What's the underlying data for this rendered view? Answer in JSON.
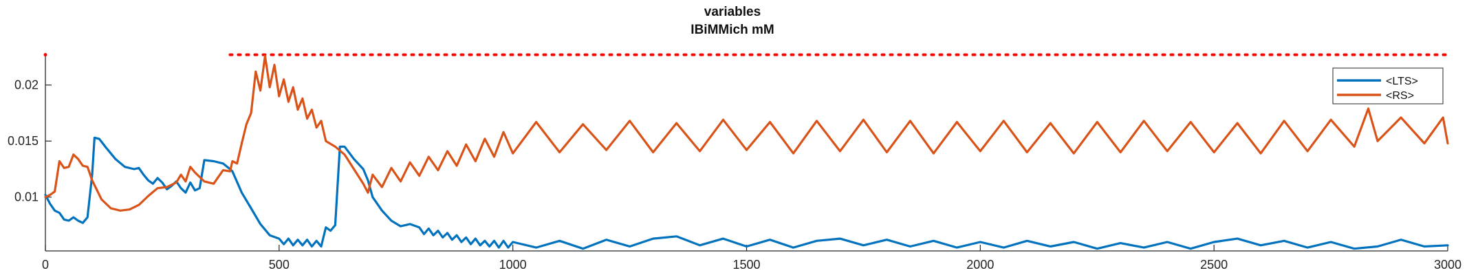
{
  "chart_data": {
    "type": "line",
    "title": "variables",
    "subtitle": "IBiMMich mM",
    "xlabel": "",
    "ylabel": "",
    "xlim": [
      0,
      3000
    ],
    "ylim": [
      0.0052,
      0.0228
    ],
    "x_ticks": [
      0,
      500,
      1000,
      1500,
      2000,
      2500,
      3000
    ],
    "x_tick_labels": [
      "0",
      "500",
      "1000",
      "1500",
      "2000",
      "2500",
      "3000"
    ],
    "y_ticks": [
      0.01,
      0.015,
      0.02
    ],
    "y_tick_labels": [
      "0.01",
      "0.015",
      "0.02"
    ],
    "grid": false,
    "legend_position": "top-right",
    "reference_line": {
      "y": 0.0227,
      "color": "#ff0000",
      "style": "dotted",
      "x_start": 395,
      "x_end": 3000,
      "extra_points_x": [
        0
      ]
    },
    "series": [
      {
        "name": "<LTS>",
        "color": "#0072BD",
        "points": [
          [
            0,
            0.0102
          ],
          [
            10,
            0.0094
          ],
          [
            20,
            0.0088
          ],
          [
            30,
            0.0086
          ],
          [
            40,
            0.008
          ],
          [
            50,
            0.0079
          ],
          [
            60,
            0.0082
          ],
          [
            70,
            0.0079
          ],
          [
            80,
            0.0077
          ],
          [
            90,
            0.0082
          ],
          [
            100,
            0.012
          ],
          [
            105,
            0.0153
          ],
          [
            115,
            0.0152
          ],
          [
            130,
            0.0144
          ],
          [
            150,
            0.0134
          ],
          [
            170,
            0.0127
          ],
          [
            190,
            0.0125
          ],
          [
            200,
            0.0126
          ],
          [
            210,
            0.012
          ],
          [
            220,
            0.0115
          ],
          [
            230,
            0.0112
          ],
          [
            240,
            0.0117
          ],
          [
            250,
            0.0113
          ],
          [
            260,
            0.0107
          ],
          [
            270,
            0.011
          ],
          [
            280,
            0.0114
          ],
          [
            290,
            0.0108
          ],
          [
            300,
            0.0104
          ],
          [
            310,
            0.0113
          ],
          [
            320,
            0.0106
          ],
          [
            330,
            0.0108
          ],
          [
            340,
            0.0133
          ],
          [
            360,
            0.0132
          ],
          [
            380,
            0.013
          ],
          [
            395,
            0.0125
          ],
          [
            400,
            0.0123
          ],
          [
            420,
            0.0104
          ],
          [
            440,
            0.009
          ],
          [
            460,
            0.0076
          ],
          [
            480,
            0.0066
          ],
          [
            500,
            0.0063
          ],
          [
            510,
            0.0058
          ],
          [
            520,
            0.0063
          ],
          [
            530,
            0.0057
          ],
          [
            540,
            0.0062
          ],
          [
            550,
            0.0057
          ],
          [
            560,
            0.0062
          ],
          [
            570,
            0.0056
          ],
          [
            580,
            0.0061
          ],
          [
            590,
            0.0056
          ],
          [
            600,
            0.0073
          ],
          [
            610,
            0.007
          ],
          [
            620,
            0.0075
          ],
          [
            630,
            0.0145
          ],
          [
            640,
            0.0145
          ],
          [
            660,
            0.0134
          ],
          [
            680,
            0.0125
          ],
          [
            690,
            0.0115
          ],
          [
            700,
            0.01
          ],
          [
            720,
            0.0088
          ],
          [
            740,
            0.0079
          ],
          [
            760,
            0.0074
          ],
          [
            780,
            0.0076
          ],
          [
            800,
            0.0073
          ],
          [
            810,
            0.0067
          ],
          [
            820,
            0.0072
          ],
          [
            830,
            0.0066
          ],
          [
            840,
            0.007
          ],
          [
            850,
            0.0064
          ],
          [
            860,
            0.0068
          ],
          [
            870,
            0.0062
          ],
          [
            880,
            0.0066
          ],
          [
            890,
            0.006
          ],
          [
            900,
            0.0064
          ],
          [
            910,
            0.0058
          ],
          [
            920,
            0.0063
          ],
          [
            930,
            0.0057
          ],
          [
            940,
            0.0061
          ],
          [
            950,
            0.0056
          ],
          [
            960,
            0.0061
          ],
          [
            970,
            0.0055
          ],
          [
            980,
            0.0061
          ],
          [
            990,
            0.0055
          ],
          [
            1000,
            0.006
          ],
          [
            1050,
            0.0055
          ],
          [
            1100,
            0.0061
          ],
          [
            1150,
            0.0054
          ],
          [
            1200,
            0.0062
          ],
          [
            1250,
            0.0056
          ],
          [
            1300,
            0.0063
          ],
          [
            1350,
            0.0065
          ],
          [
            1400,
            0.0057
          ],
          [
            1450,
            0.0063
          ],
          [
            1500,
            0.0056
          ],
          [
            1550,
            0.0062
          ],
          [
            1600,
            0.0055
          ],
          [
            1650,
            0.0061
          ],
          [
            1700,
            0.0063
          ],
          [
            1750,
            0.0057
          ],
          [
            1800,
            0.0062
          ],
          [
            1850,
            0.0056
          ],
          [
            1900,
            0.0061
          ],
          [
            1950,
            0.0055
          ],
          [
            2000,
            0.006
          ],
          [
            2050,
            0.0055
          ],
          [
            2100,
            0.0061
          ],
          [
            2150,
            0.0056
          ],
          [
            2200,
            0.006
          ],
          [
            2250,
            0.0054
          ],
          [
            2300,
            0.0059
          ],
          [
            2350,
            0.0055
          ],
          [
            2400,
            0.006
          ],
          [
            2450,
            0.0054
          ],
          [
            2500,
            0.006
          ],
          [
            2550,
            0.0063
          ],
          [
            2600,
            0.0057
          ],
          [
            2650,
            0.0061
          ],
          [
            2700,
            0.0055
          ],
          [
            2750,
            0.006
          ],
          [
            2800,
            0.0054
          ],
          [
            2850,
            0.0056
          ],
          [
            2900,
            0.0062
          ],
          [
            2950,
            0.0056
          ],
          [
            3000,
            0.0057
          ]
        ]
      },
      {
        "name": "<RS>",
        "color": "#D95319",
        "points": [
          [
            0,
            0.01
          ],
          [
            10,
            0.0102
          ],
          [
            20,
            0.0105
          ],
          [
            30,
            0.0132
          ],
          [
            40,
            0.0126
          ],
          [
            50,
            0.0127
          ],
          [
            60,
            0.0138
          ],
          [
            70,
            0.0134
          ],
          [
            80,
            0.0128
          ],
          [
            90,
            0.0127
          ],
          [
            100,
            0.0115
          ],
          [
            120,
            0.0098
          ],
          [
            140,
            0.009
          ],
          [
            160,
            0.0088
          ],
          [
            180,
            0.0089
          ],
          [
            200,
            0.0093
          ],
          [
            220,
            0.0101
          ],
          [
            240,
            0.0108
          ],
          [
            260,
            0.0109
          ],
          [
            280,
            0.0113
          ],
          [
            290,
            0.012
          ],
          [
            300,
            0.0114
          ],
          [
            310,
            0.0127
          ],
          [
            320,
            0.0122
          ],
          [
            340,
            0.0114
          ],
          [
            360,
            0.0112
          ],
          [
            380,
            0.0124
          ],
          [
            395,
            0.0123
          ],
          [
            400,
            0.0132
          ],
          [
            410,
            0.013
          ],
          [
            420,
            0.0148
          ],
          [
            430,
            0.0165
          ],
          [
            440,
            0.0175
          ],
          [
            450,
            0.0212
          ],
          [
            460,
            0.0195
          ],
          [
            470,
            0.0226
          ],
          [
            480,
            0.0198
          ],
          [
            490,
            0.0218
          ],
          [
            500,
            0.019
          ],
          [
            510,
            0.0205
          ],
          [
            520,
            0.0185
          ],
          [
            530,
            0.0198
          ],
          [
            540,
            0.0178
          ],
          [
            550,
            0.0188
          ],
          [
            560,
            0.017
          ],
          [
            570,
            0.0178
          ],
          [
            580,
            0.0162
          ],
          [
            590,
            0.0168
          ],
          [
            600,
            0.015
          ],
          [
            620,
            0.0145
          ],
          [
            640,
            0.0138
          ],
          [
            660,
            0.0125
          ],
          [
            680,
            0.0112
          ],
          [
            690,
            0.0104
          ],
          [
            700,
            0.012
          ],
          [
            720,
            0.0109
          ],
          [
            740,
            0.0126
          ],
          [
            760,
            0.0114
          ],
          [
            780,
            0.0131
          ],
          [
            800,
            0.0119
          ],
          [
            820,
            0.0136
          ],
          [
            840,
            0.0124
          ],
          [
            860,
            0.0141
          ],
          [
            880,
            0.0128
          ],
          [
            900,
            0.0147
          ],
          [
            920,
            0.0132
          ],
          [
            940,
            0.0152
          ],
          [
            960,
            0.0136
          ],
          [
            980,
            0.0158
          ],
          [
            1000,
            0.0139
          ],
          [
            1050,
            0.0167
          ],
          [
            1100,
            0.014
          ],
          [
            1150,
            0.0165
          ],
          [
            1200,
            0.0142
          ],
          [
            1250,
            0.0168
          ],
          [
            1300,
            0.014
          ],
          [
            1350,
            0.0166
          ],
          [
            1400,
            0.0141
          ],
          [
            1450,
            0.0169
          ],
          [
            1500,
            0.0142
          ],
          [
            1550,
            0.0167
          ],
          [
            1600,
            0.0139
          ],
          [
            1650,
            0.0168
          ],
          [
            1700,
            0.0141
          ],
          [
            1750,
            0.0169
          ],
          [
            1800,
            0.014
          ],
          [
            1850,
            0.0168
          ],
          [
            1900,
            0.0139
          ],
          [
            1950,
            0.0167
          ],
          [
            2000,
            0.0141
          ],
          [
            2050,
            0.0168
          ],
          [
            2100,
            0.014
          ],
          [
            2150,
            0.0166
          ],
          [
            2200,
            0.0139
          ],
          [
            2250,
            0.0167
          ],
          [
            2300,
            0.014
          ],
          [
            2350,
            0.0168
          ],
          [
            2400,
            0.0141
          ],
          [
            2450,
            0.0167
          ],
          [
            2500,
            0.014
          ],
          [
            2550,
            0.0166
          ],
          [
            2600,
            0.0139
          ],
          [
            2650,
            0.0168
          ],
          [
            2700,
            0.0141
          ],
          [
            2750,
            0.0169
          ],
          [
            2800,
            0.0145
          ],
          [
            2830,
            0.0179
          ],
          [
            2850,
            0.015
          ],
          [
            2900,
            0.0171
          ],
          [
            2950,
            0.0148
          ],
          [
            2990,
            0.0171
          ],
          [
            3000,
            0.0148
          ]
        ]
      }
    ]
  }
}
